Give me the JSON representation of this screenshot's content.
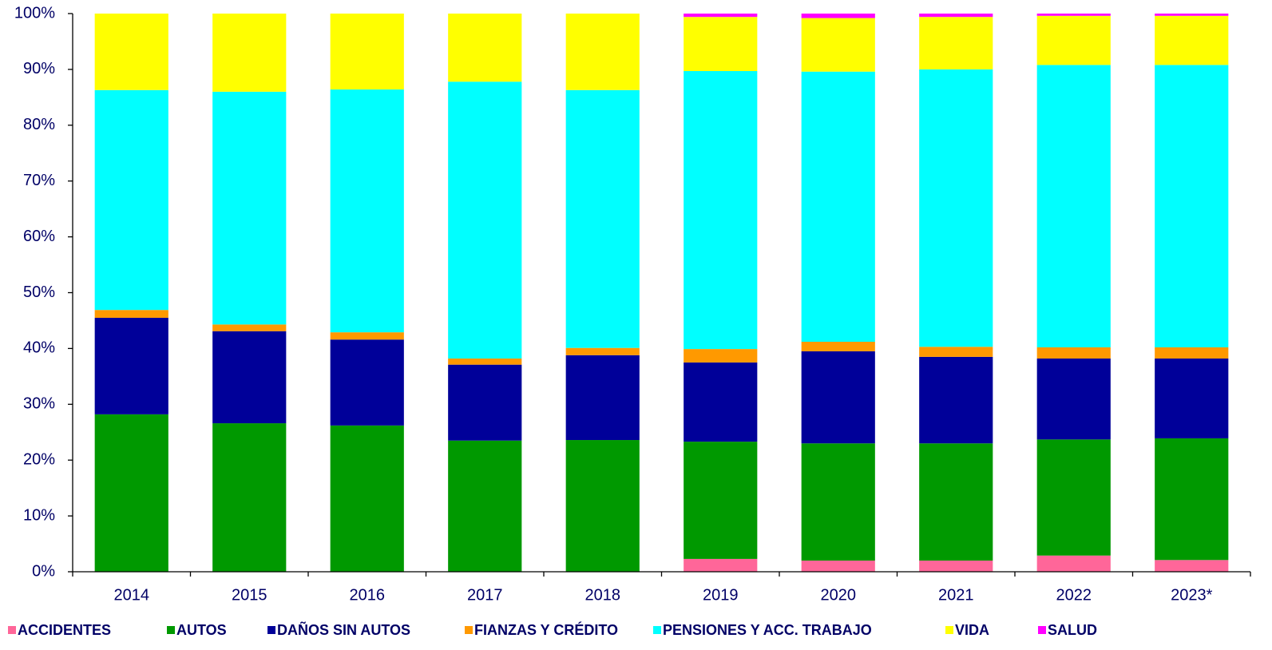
{
  "chart_data": {
    "type": "stacked_bar",
    "categories": [
      "2014",
      "2015",
      "2016",
      "2017",
      "2018",
      "2019",
      "2020",
      "2021",
      "2022",
      "2023*"
    ],
    "series": [
      {
        "name": "ACCIDENTES",
        "color": "#ff6699",
        "values": [
          0,
          0,
          0,
          0,
          0,
          2.3,
          2.0,
          2.0,
          2.9,
          2.1
        ]
      },
      {
        "name": "AUTOS",
        "color": "#009900",
        "values": [
          28.2,
          26.6,
          26.2,
          23.5,
          23.6,
          21.0,
          21.0,
          21.0,
          20.8,
          21.8
        ]
      },
      {
        "name": "DAÑOS SIN AUTOS",
        "color": "#000099",
        "values": [
          17.3,
          16.5,
          15.4,
          13.6,
          15.2,
          14.2,
          16.5,
          15.5,
          14.5,
          14.3
        ]
      },
      {
        "name": "FIANZAS Y CRÉDITO",
        "color": "#ff9900",
        "values": [
          1.4,
          1.2,
          1.3,
          1.1,
          1.3,
          2.4,
          1.7,
          1.8,
          2.0,
          2.0
        ]
      },
      {
        "name": "PENSIONES Y ACC. TRABAJO",
        "color": "#00ffff",
        "values": [
          39.4,
          41.7,
          43.5,
          49.6,
          46.2,
          49.8,
          48.4,
          49.7,
          50.6,
          50.6
        ]
      },
      {
        "name": "VIDA",
        "color": "#ffff00",
        "values": [
          13.7,
          14.0,
          13.6,
          12.2,
          13.7,
          9.7,
          9.6,
          9.4,
          8.8,
          8.8
        ]
      },
      {
        "name": "SALUD",
        "color": "#ff00ff",
        "values": [
          0,
          0,
          0,
          0,
          0,
          0.6,
          0.8,
          0.6,
          0.4,
          0.4
        ]
      }
    ],
    "ylim": [
      0,
      100
    ],
    "yticks": [
      {
        "value": 0,
        "label": "0%"
      },
      {
        "value": 10,
        "label": "10%"
      },
      {
        "value": 20,
        "label": "20%"
      },
      {
        "value": 30,
        "label": "30%"
      },
      {
        "value": 40,
        "label": "40%"
      },
      {
        "value": 50,
        "label": "50%"
      },
      {
        "value": 60,
        "label": "60%"
      },
      {
        "value": 70,
        "label": "70%"
      },
      {
        "value": 80,
        "label": "80%"
      },
      {
        "value": 90,
        "label": "90%"
      },
      {
        "value": 100,
        "label": "100%"
      }
    ],
    "grid": false,
    "legend": "bottom"
  }
}
